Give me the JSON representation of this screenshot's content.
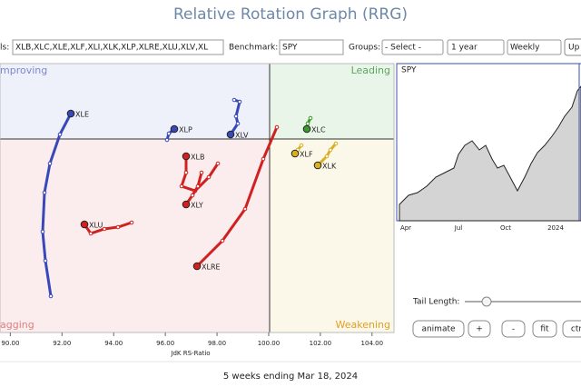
{
  "header": {
    "title": "Relative Rotation Graph (RRG)"
  },
  "toolbar": {
    "symbols_label": "ls:",
    "symbols": "XLB,XLC,XLE,XLF,XLI,XLK,XLP,XLRE,XLU,XLV,XL",
    "benchmark_label": "Benchmark:",
    "benchmark": "SPY",
    "groups_label": "Groups:",
    "groups": "- Select -",
    "period": "1 year",
    "frequency": "Weekly",
    "update": "Up"
  },
  "rrg": {
    "quadrants": {
      "improving": "mproving",
      "leading": "Leading",
      "lagging": "agging",
      "weakening": "Weakening"
    },
    "x_label": "JdK RS-Ratio",
    "xlim": [
      89.6,
      104.85
    ],
    "xticks": [
      {
        "value": 90,
        "label": "90.00"
      },
      {
        "value": 92,
        "label": "92.00"
      },
      {
        "value": 94,
        "label": "94.00"
      },
      {
        "value": 96,
        "label": "96.00"
      },
      {
        "value": 98,
        "label": "98.00"
      },
      {
        "value": 100,
        "label": "100.00"
      },
      {
        "value": 102,
        "label": "102.00"
      },
      {
        "value": 104,
        "label": "104.00"
      }
    ],
    "symbols": [
      "XLE",
      "XLP",
      "XLV",
      "XLC",
      "XLF",
      "XLK",
      "XLB",
      "XLY",
      "XLU",
      "XLRE"
    ]
  },
  "price_panel": {
    "title": "SPY",
    "x_labels": [
      "Apr",
      "Jul",
      "Oct",
      "2024"
    ]
  },
  "controls": {
    "tail_length": "Tail Length:",
    "buttons": [
      "animate",
      "+",
      "-",
      "fit",
      "ctr"
    ]
  },
  "footer": "5 weeks ending Mar 18, 2024"
}
